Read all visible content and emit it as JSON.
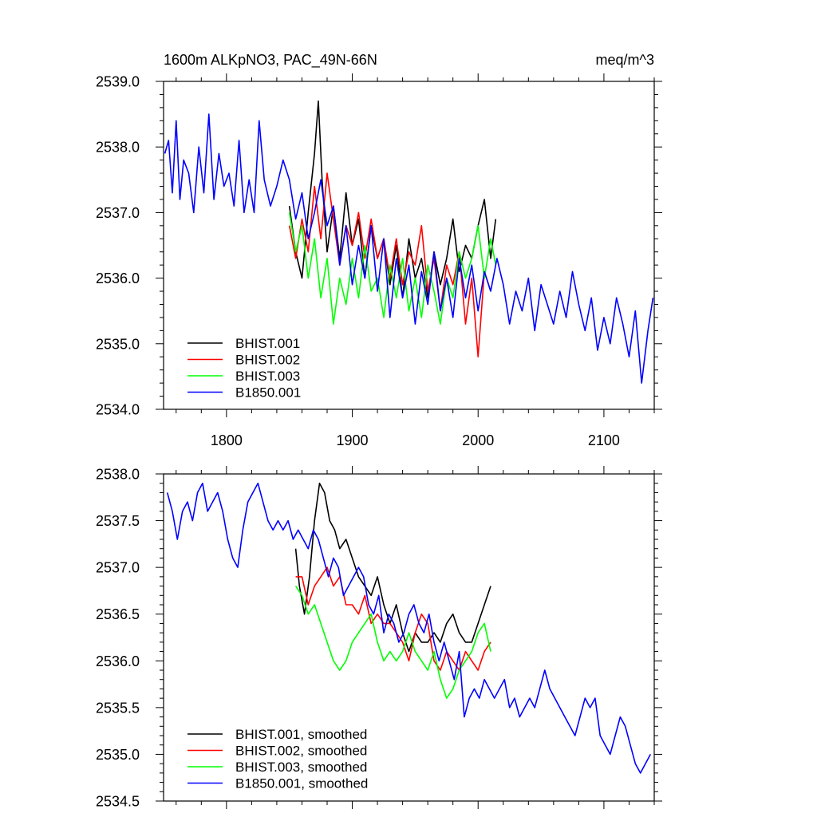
{
  "chart_data": [
    {
      "type": "line",
      "title_left": "1600m ALKpNO3, PAC_49N-66N",
      "title_right": "meq/m^3",
      "xlabel": "",
      "ylabel": "",
      "xlim": [
        1750,
        2140
      ],
      "ylim": [
        2534.0,
        2539.0
      ],
      "x_ticks": [
        1800,
        1900,
        2000,
        2100
      ],
      "x_tick_labels": [
        "1800",
        "1900",
        "2000",
        "2100"
      ],
      "y_ticks": [
        2534.0,
        2535.0,
        2536.0,
        2537.0,
        2538.0,
        2539.0
      ],
      "y_tick_labels": [
        "2534.0",
        "2535.0",
        "2536.0",
        "2537.0",
        "2538.0",
        "2539.0"
      ],
      "legend_position": "bottom-left",
      "series": [
        {
          "name": "BHIST.001",
          "color": "#000000",
          "x": [
            1850,
            1855,
            1860,
            1865,
            1870,
            1873,
            1876,
            1880,
            1885,
            1890,
            1895,
            1900,
            1905,
            1910,
            1915,
            1920,
            1925,
            1930,
            1935,
            1940,
            1945,
            1950,
            1955,
            1960,
            1965,
            1970,
            1975,
            1980,
            1985,
            1990,
            1995,
            2000,
            2005,
            2010,
            2014
          ],
          "y": [
            2537.1,
            2536.4,
            2536.0,
            2537.0,
            2537.9,
            2538.7,
            2537.5,
            2536.4,
            2537.1,
            2536.3,
            2537.3,
            2536.5,
            2536.9,
            2536.0,
            2536.8,
            2536.3,
            2536.6,
            2535.9,
            2536.5,
            2535.7,
            2536.6,
            2536.0,
            2536.3,
            2535.7,
            2536.4,
            2535.9,
            2536.3,
            2536.9,
            2536.1,
            2536.5,
            2536.3,
            2536.8,
            2537.2,
            2536.3,
            2536.9
          ]
        },
        {
          "name": "BHIST.002",
          "color": "#ff0000",
          "x": [
            1850,
            1855,
            1860,
            1865,
            1870,
            1875,
            1880,
            1885,
            1890,
            1895,
            1900,
            1905,
            1910,
            1915,
            1920,
            1925,
            1930,
            1935,
            1940,
            1945,
            1950,
            1955,
            1960,
            1965,
            1970,
            1975,
            1980,
            1985,
            1990,
            1995,
            2000,
            2005,
            2010
          ],
          "y": [
            2536.8,
            2536.3,
            2536.9,
            2536.4,
            2537.4,
            2536.6,
            2537.6,
            2536.9,
            2536.2,
            2536.8,
            2536.5,
            2537.0,
            2536.3,
            2536.9,
            2536.3,
            2536.6,
            2536.0,
            2536.6,
            2535.9,
            2536.4,
            2536.2,
            2536.8,
            2535.8,
            2536.3,
            2535.5,
            2536.2,
            2535.9,
            2536.4,
            2535.3,
            2536.0,
            2534.8,
            2536.1,
            2535.8
          ]
        },
        {
          "name": "BHIST.003",
          "color": "#00ff00",
          "x": [
            1850,
            1855,
            1860,
            1865,
            1870,
            1875,
            1880,
            1885,
            1890,
            1895,
            1900,
            1905,
            1910,
            1915,
            1920,
            1925,
            1930,
            1935,
            1940,
            1945,
            1950,
            1955,
            1960,
            1965,
            1970,
            1975,
            1980,
            1985,
            1990,
            1995,
            2000,
            2005,
            2010,
            2014
          ],
          "y": [
            2537.0,
            2536.4,
            2536.8,
            2536.0,
            2536.6,
            2535.7,
            2536.3,
            2535.3,
            2536.0,
            2535.6,
            2536.3,
            2535.7,
            2536.5,
            2535.8,
            2536.0,
            2535.4,
            2536.2,
            2535.7,
            2536.3,
            2535.5,
            2536.0,
            2535.4,
            2536.2,
            2535.8,
            2535.3,
            2536.0,
            2535.7,
            2536.4,
            2536.0,
            2536.3,
            2536.8,
            2536.0,
            2536.6,
            2536.2
          ]
        },
        {
          "name": "B1850.001",
          "color": "#0000ff",
          "x": [
            1751,
            1754,
            1757,
            1760,
            1763,
            1766,
            1770,
            1774,
            1778,
            1782,
            1786,
            1790,
            1794,
            1798,
            1802,
            1806,
            1810,
            1814,
            1818,
            1822,
            1826,
            1830,
            1835,
            1840,
            1845,
            1850,
            1855,
            1860,
            1865,
            1870,
            1875,
            1880,
            1885,
            1890,
            1895,
            1900,
            1905,
            1910,
            1915,
            1920,
            1925,
            1930,
            1935,
            1940,
            1945,
            1950,
            1955,
            1960,
            1965,
            1970,
            1975,
            1980,
            1985,
            1990,
            1995,
            2000,
            2005,
            2010,
            2015,
            2020,
            2025,
            2030,
            2035,
            2040,
            2045,
            2050,
            2055,
            2060,
            2065,
            2070,
            2075,
            2080,
            2085,
            2090,
            2095,
            2100,
            2105,
            2110,
            2115,
            2120,
            2125,
            2130,
            2135,
            2139
          ],
          "y": [
            2537.9,
            2538.1,
            2537.3,
            2538.4,
            2537.2,
            2537.8,
            2537.6,
            2537.0,
            2538.0,
            2537.3,
            2538.5,
            2537.2,
            2537.9,
            2537.4,
            2537.6,
            2537.1,
            2538.1,
            2537.0,
            2537.5,
            2537.0,
            2538.4,
            2537.5,
            2537.1,
            2537.4,
            2537.8,
            2537.5,
            2536.9,
            2537.3,
            2536.6,
            2537.0,
            2537.5,
            2536.8,
            2537.1,
            2536.2,
            2536.8,
            2535.9,
            2536.5,
            2536.0,
            2536.8,
            2535.8,
            2536.6,
            2535.4,
            2536.3,
            2535.7,
            2536.2,
            2535.3,
            2536.1,
            2535.6,
            2536.4,
            2535.5,
            2536.0,
            2535.4,
            2536.3,
            2535.7,
            2536.2,
            2535.5,
            2536.1,
            2535.8,
            2536.3,
            2535.9,
            2535.3,
            2535.8,
            2535.5,
            2536.0,
            2535.2,
            2535.9,
            2535.6,
            2535.3,
            2535.8,
            2535.4,
            2536.1,
            2535.6,
            2535.2,
            2535.7,
            2534.9,
            2535.4,
            2535.0,
            2535.7,
            2535.3,
            2534.8,
            2535.5,
            2534.4,
            2535.2,
            2535.7
          ]
        }
      ]
    },
    {
      "type": "line",
      "title_left": "",
      "title_right": "",
      "xlabel": "",
      "ylabel": "",
      "xlim": [
        1750,
        2140
      ],
      "ylim": [
        2534.5,
        2538.0
      ],
      "x_ticks": [
        1800,
        1900,
        2000,
        2100
      ],
      "x_tick_labels": [],
      "y_ticks": [
        2534.5,
        2535.0,
        2535.5,
        2536.0,
        2536.5,
        2537.0,
        2537.5,
        2538.0
      ],
      "y_tick_labels": [
        "2534.5",
        "2535.0",
        "2535.5",
        "2536.0",
        "2536.5",
        "2537.0",
        "2537.5",
        "2538.0"
      ],
      "legend_position": "bottom-left",
      "series": [
        {
          "name": "BHIST.001, smoothed",
          "color": "#000000",
          "x": [
            1855,
            1858,
            1862,
            1866,
            1870,
            1874,
            1878,
            1882,
            1886,
            1890,
            1895,
            1900,
            1905,
            1910,
            1915,
            1920,
            1925,
            1930,
            1935,
            1940,
            1945,
            1950,
            1955,
            1960,
            1965,
            1970,
            1975,
            1980,
            1985,
            1990,
            1995,
            2000,
            2005,
            2010
          ],
          "y": [
            2537.2,
            2536.8,
            2536.5,
            2536.9,
            2537.5,
            2537.9,
            2537.8,
            2537.5,
            2537.4,
            2537.2,
            2537.3,
            2537.1,
            2536.9,
            2536.8,
            2536.7,
            2536.9,
            2536.6,
            2536.4,
            2536.6,
            2536.3,
            2536.1,
            2536.3,
            2536.2,
            2536.2,
            2536.3,
            2536.2,
            2536.4,
            2536.5,
            2536.3,
            2536.2,
            2536.2,
            2536.4,
            2536.6,
            2536.8
          ]
        },
        {
          "name": "BHIST.002, smoothed",
          "color": "#ff0000",
          "x": [
            1855,
            1860,
            1865,
            1870,
            1875,
            1880,
            1885,
            1890,
            1895,
            1900,
            1905,
            1910,
            1915,
            1920,
            1925,
            1930,
            1935,
            1940,
            1945,
            1950,
            1955,
            1960,
            1965,
            1970,
            1975,
            1980,
            1985,
            1990,
            1995,
            2000,
            2005,
            2010
          ],
          "y": [
            2536.9,
            2536.9,
            2536.6,
            2536.8,
            2536.9,
            2537.0,
            2536.8,
            2536.9,
            2536.6,
            2536.6,
            2536.5,
            2536.7,
            2536.4,
            2536.5,
            2536.4,
            2536.4,
            2536.3,
            2536.2,
            2536.0,
            2536.3,
            2536.5,
            2536.4,
            2536.0,
            2535.9,
            2536.1,
            2536.0,
            2535.9,
            2536.1,
            2536.0,
            2535.9,
            2536.1,
            2536.2
          ]
        },
        {
          "name": "BHIST.003, smoothed",
          "color": "#00ff00",
          "x": [
            1855,
            1860,
            1865,
            1870,
            1875,
            1880,
            1885,
            1890,
            1895,
            1900,
            1905,
            1910,
            1915,
            1920,
            1925,
            1930,
            1935,
            1940,
            1945,
            1950,
            1955,
            1960,
            1965,
            1970,
            1975,
            1980,
            1985,
            1990,
            1995,
            2000,
            2005,
            2010
          ],
          "y": [
            2536.8,
            2536.7,
            2536.5,
            2536.6,
            2536.4,
            2536.2,
            2536.0,
            2535.9,
            2536.0,
            2536.2,
            2536.3,
            2536.4,
            2536.5,
            2536.2,
            2536.0,
            2536.1,
            2536.0,
            2536.1,
            2536.3,
            2536.1,
            2536.0,
            2535.9,
            2536.1,
            2535.8,
            2535.6,
            2535.7,
            2535.9,
            2536.0,
            2536.1,
            2536.3,
            2536.4,
            2536.1
          ]
        },
        {
          "name": "B1850.001, smoothed",
          "color": "#0000ff",
          "x": [
            1753,
            1757,
            1761,
            1765,
            1769,
            1773,
            1777,
            1781,
            1785,
            1789,
            1793,
            1797,
            1801,
            1805,
            1809,
            1813,
            1817,
            1821,
            1825,
            1829,
            1833,
            1837,
            1841,
            1845,
            1849,
            1853,
            1857,
            1861,
            1865,
            1869,
            1873,
            1877,
            1881,
            1885,
            1889,
            1893,
            1897,
            1901,
            1905,
            1909,
            1913,
            1917,
            1921,
            1925,
            1929,
            1933,
            1937,
            1941,
            1945,
            1949,
            1953,
            1957,
            1961,
            1965,
            1969,
            1973,
            1977,
            1981,
            1985,
            1989,
            1993,
            1997,
            2001,
            2005,
            2009,
            2013,
            2017,
            2021,
            2025,
            2029,
            2033,
            2037,
            2041,
            2045,
            2049,
            2053,
            2057,
            2061,
            2065,
            2069,
            2073,
            2077,
            2081,
            2085,
            2089,
            2093,
            2097,
            2101,
            2105,
            2109,
            2113,
            2117,
            2121,
            2125,
            2129,
            2133,
            2137
          ],
          "y": [
            2537.8,
            2537.6,
            2537.3,
            2537.6,
            2537.7,
            2537.5,
            2537.8,
            2537.9,
            2537.6,
            2537.7,
            2537.8,
            2537.6,
            2537.3,
            2537.1,
            2537.0,
            2537.4,
            2537.7,
            2537.8,
            2537.9,
            2537.7,
            2537.5,
            2537.4,
            2537.5,
            2537.4,
            2537.5,
            2537.3,
            2537.4,
            2537.3,
            2537.2,
            2537.4,
            2537.3,
            2537.1,
            2536.9,
            2537.1,
            2537.0,
            2536.7,
            2536.8,
            2536.9,
            2537.0,
            2536.9,
            2536.6,
            2536.5,
            2536.7,
            2536.3,
            2536.5,
            2536.4,
            2536.2,
            2536.3,
            2536.5,
            2536.6,
            2536.4,
            2536.3,
            2536.5,
            2536.2,
            2536.0,
            2536.2,
            2536.0,
            2535.8,
            2536.1,
            2535.4,
            2535.6,
            2535.7,
            2535.6,
            2535.8,
            2535.7,
            2535.6,
            2535.7,
            2535.8,
            2535.5,
            2535.6,
            2535.4,
            2535.5,
            2535.6,
            2535.5,
            2535.7,
            2535.9,
            2535.7,
            2535.6,
            2535.5,
            2535.4,
            2535.3,
            2535.2,
            2535.4,
            2535.6,
            2535.5,
            2535.6,
            2535.2,
            2535.1,
            2535.0,
            2535.2,
            2535.4,
            2535.3,
            2535.1,
            2534.9,
            2534.8,
            2534.9,
            2535.0
          ]
        }
      ]
    }
  ]
}
